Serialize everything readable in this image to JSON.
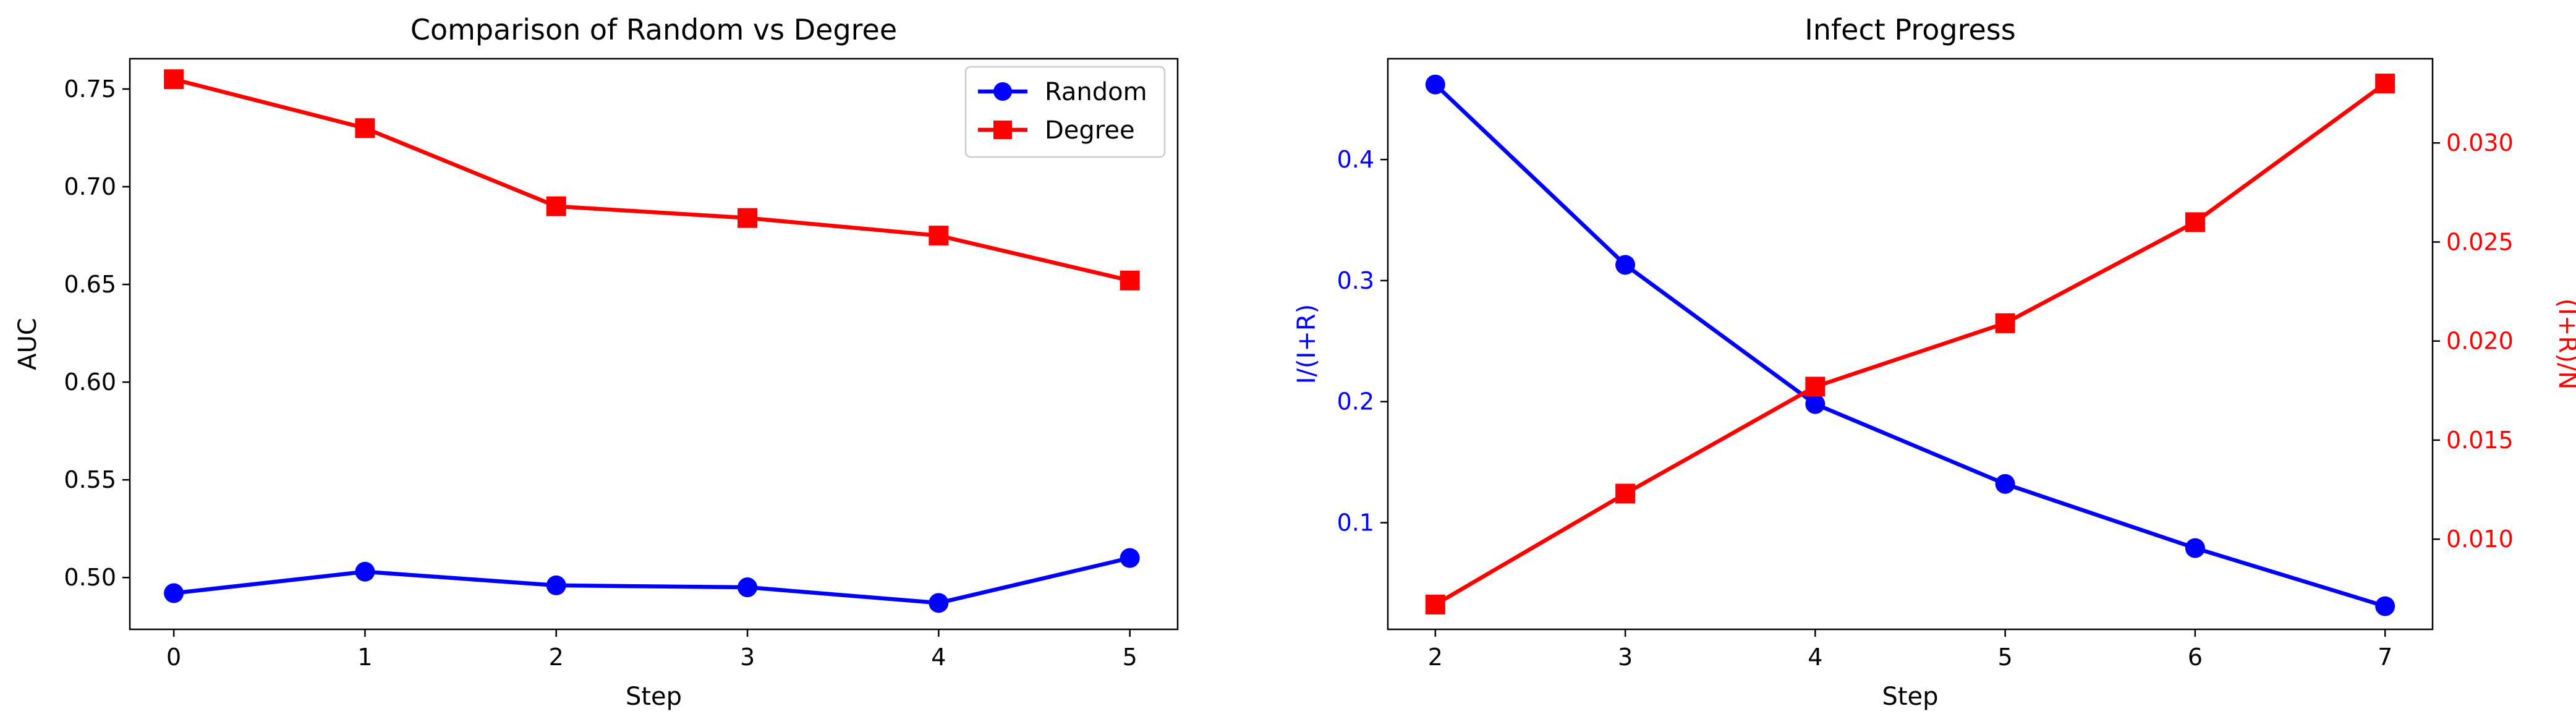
{
  "chart_data": [
    {
      "type": "line",
      "title": "Comparison of Random vs Degree",
      "xlabel": "Step",
      "ylabel": "AUC",
      "x": [
        0,
        1,
        2,
        3,
        4,
        5
      ],
      "xticks": [
        "0",
        "1",
        "2",
        "3",
        "4",
        "5"
      ],
      "xlim": [
        -0.23,
        5.25
      ],
      "ylim": [
        0.4735,
        0.7655
      ],
      "yticks": [
        "0.50",
        "0.55",
        "0.60",
        "0.65",
        "0.70",
        "0.75"
      ],
      "ytick_values": [
        0.5,
        0.55,
        0.6,
        0.65,
        0.7,
        0.75
      ],
      "grid": false,
      "legend": "top-right",
      "series": [
        {
          "name": "Random",
          "color": "#0000ff",
          "marker": "circle",
          "values": [
            0.492,
            0.503,
            0.496,
            0.495,
            0.487,
            0.51
          ]
        },
        {
          "name": "Degree",
          "color": "#ff0000",
          "marker": "square",
          "values": [
            0.755,
            0.73,
            0.69,
            0.684,
            0.675,
            0.652
          ]
        }
      ]
    },
    {
      "type": "line",
      "title": "Infect Progress",
      "xlabel": "Step",
      "ylabel": "I/(I+R)",
      "ylabel_right": "(I+R)/N",
      "x": [
        2,
        3,
        4,
        5,
        6,
        7
      ],
      "xticks": [
        "2",
        "3",
        "4",
        "5",
        "6",
        "7"
      ],
      "xlim": [
        1.75,
        7.25
      ],
      "ylim": [
        0.0119,
        0.4833
      ],
      "yticks": [
        "0.1",
        "0.2",
        "0.3",
        "0.4"
      ],
      "ytick_values": [
        0.1,
        0.2,
        0.3,
        0.4
      ],
      "ylim_right": [
        0.00545,
        0.03425
      ],
      "yticks_right": [
        "0.010",
        "0.015",
        "0.020",
        "0.025",
        "0.030"
      ],
      "ytick_values_right": [
        0.01,
        0.015,
        0.02,
        0.025,
        0.03
      ],
      "grid": false,
      "series": [
        {
          "axis": "left",
          "color": "#0000ff",
          "marker": "circle",
          "values": [
            0.462,
            0.313,
            0.198,
            0.132,
            0.079,
            0.031
          ]
        },
        {
          "axis": "right",
          "color": "#ff0000",
          "marker": "square",
          "values": [
            0.0067,
            0.0123,
            0.0177,
            0.0209,
            0.026,
            0.033
          ]
        }
      ]
    }
  ]
}
